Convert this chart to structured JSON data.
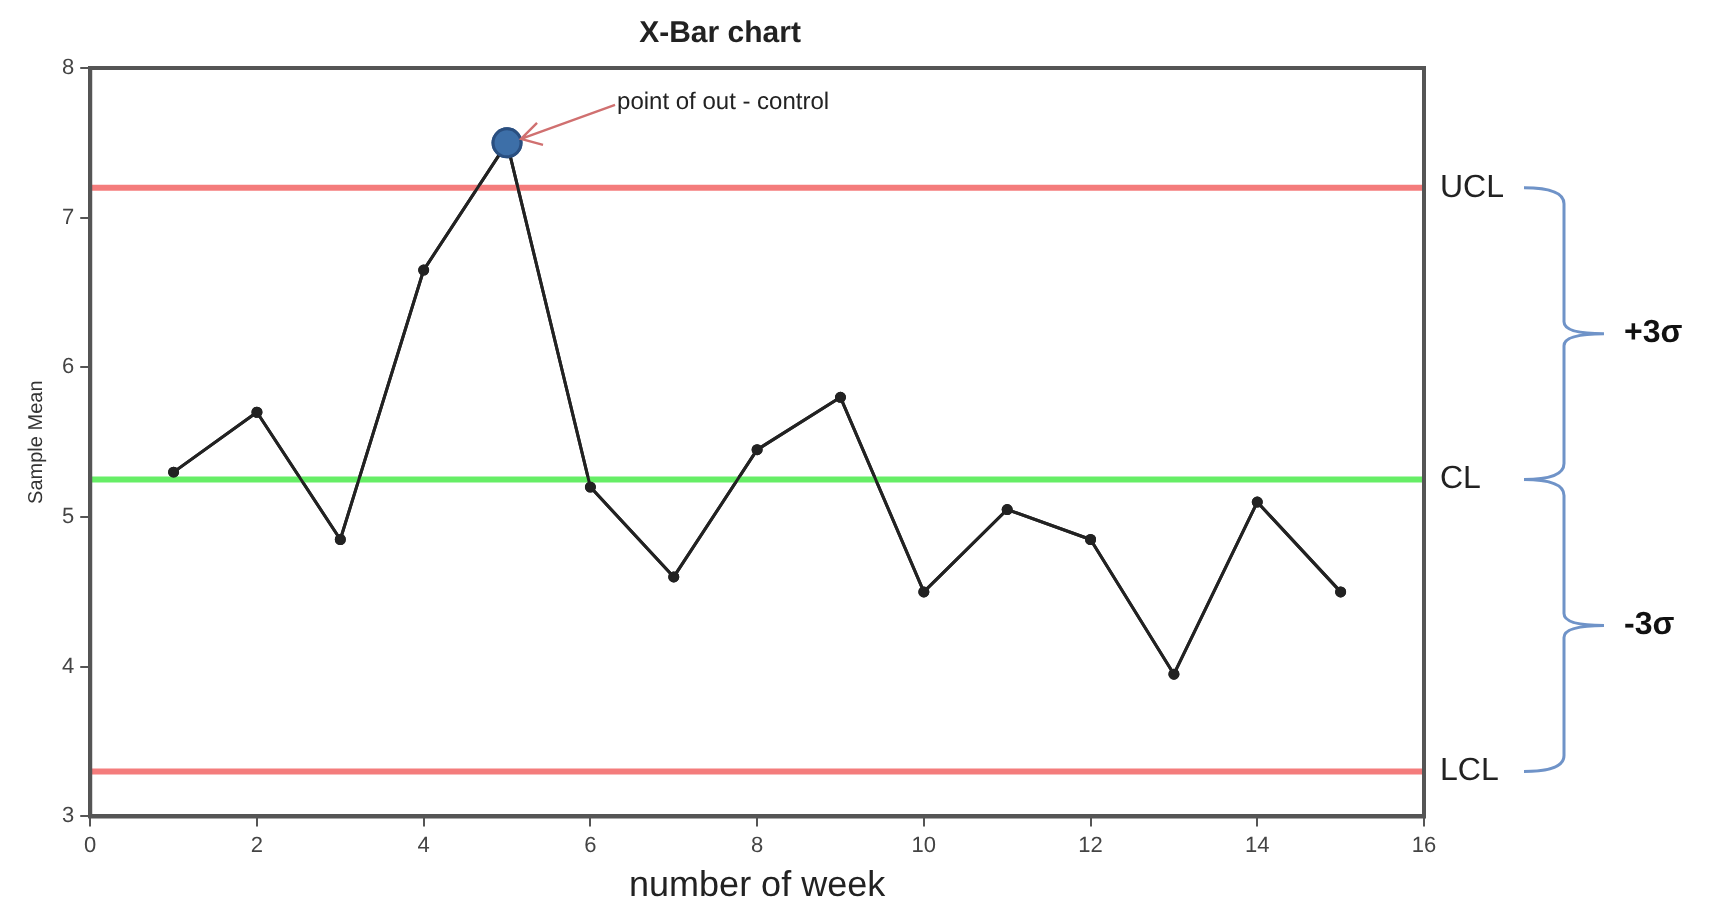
{
  "chart_data": {
    "type": "line",
    "title": "X-Bar chart",
    "xlabel": "number of week",
    "ylabel": "Sample Mean",
    "x": [
      1,
      2,
      3,
      4,
      5,
      6,
      7,
      8,
      9,
      10,
      11,
      12,
      13,
      14,
      15
    ],
    "values": [
      5.3,
      5.7,
      4.85,
      6.65,
      7.5,
      5.2,
      4.6,
      5.45,
      5.8,
      4.5,
      5.05,
      4.85,
      3.95,
      5.1,
      4.5
    ],
    "color": "#222222",
    "marker": "circle",
    "line_style": "solid",
    "xlim": [
      0,
      16
    ],
    "xticks": [
      0,
      2,
      4,
      6,
      8,
      10,
      12,
      14,
      16
    ],
    "ylim": [
      3,
      8
    ],
    "yticks": [
      3,
      4,
      5,
      6,
      7,
      8
    ],
    "grid": false,
    "legend": false,
    "ref_lines": [
      {
        "axis": "y",
        "value": 7.2,
        "label": "UCL",
        "color": "#f47c7c"
      },
      {
        "axis": "y",
        "value": 5.25,
        "label": "CL",
        "color": "#66ee66"
      },
      {
        "axis": "y",
        "value": 3.3,
        "label": "LCL",
        "color": "#f47c7c"
      }
    ],
    "annotations": [
      {
        "text": "point of out - control",
        "x": 5,
        "y": 7.5
      },
      "+3σ",
      "-3σ"
    ]
  }
}
